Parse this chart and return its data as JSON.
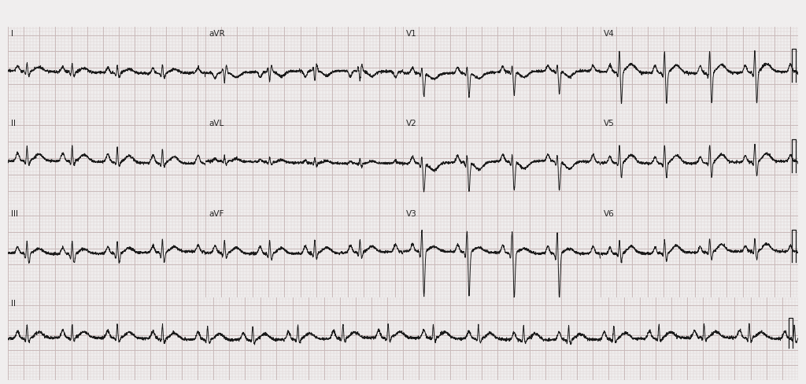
{
  "bg_color": "#f0eeee",
  "grid_major_color": "#c8b8b8",
  "grid_minor_color": "#ddd4d4",
  "ecg_color": "#1a1a1a",
  "text_color": "#222222",
  "fig_width": 10.24,
  "fig_height": 4.88,
  "dpi": 100,
  "sample_rate": 500,
  "duration_per_strip": 2.5,
  "heart_rate": 105,
  "line_width": 0.7,
  "leads_row1": [
    "I",
    "aVR",
    "V1",
    "V4"
  ],
  "leads_row2": [
    "II",
    "aVL",
    "V2",
    "V5"
  ],
  "leads_row3": [
    "III",
    "aVF",
    "V3",
    "V6"
  ],
  "label_fontsize": 7.5
}
